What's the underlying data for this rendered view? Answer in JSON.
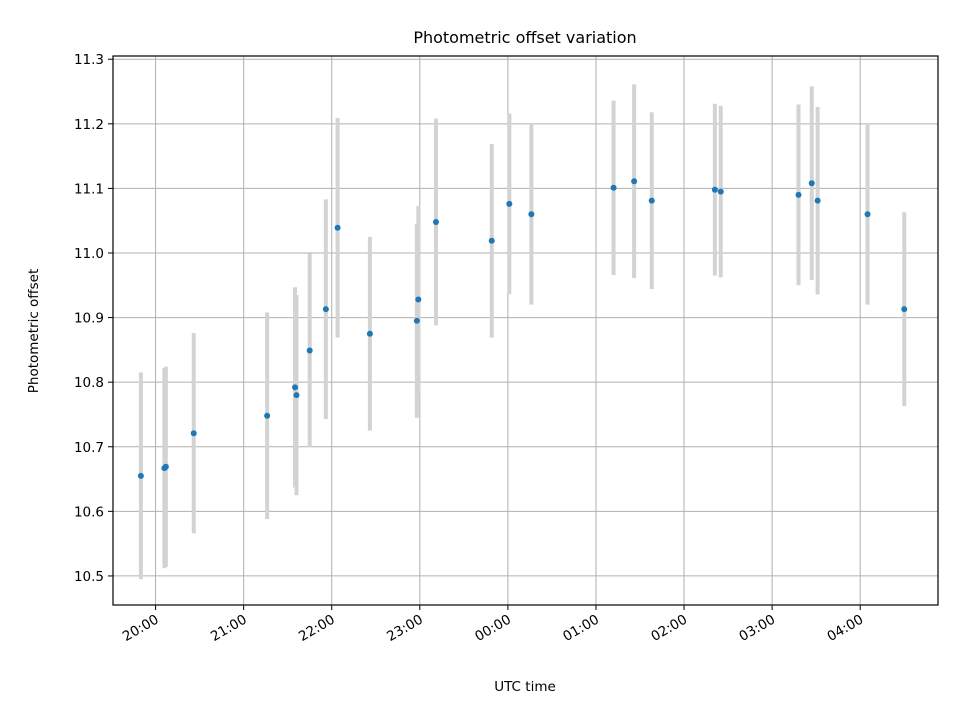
{
  "chart_data": {
    "type": "scatter",
    "title": "Photometric offset variation",
    "xlabel": "UTC time",
    "ylabel": "Photometric offset",
    "x_tick_labels": [
      "20:00",
      "21:00",
      "22:00",
      "23:00",
      "00:00",
      "01:00",
      "02:00",
      "03:00",
      "04:00"
    ],
    "y_ticks": [
      10.5,
      10.6,
      10.7,
      10.8,
      10.9,
      11.0,
      11.1,
      11.2,
      11.3
    ],
    "y_tick_labels": [
      "10.5",
      "10.6",
      "10.7",
      "10.8",
      "10.9",
      "11.0",
      "11.1",
      "11.2",
      "11.3"
    ],
    "x_range": [
      "19:31",
      "04:53"
    ],
    "ylim": [
      10.455,
      11.305
    ],
    "grid": true,
    "point_color": "#1f77b4",
    "errorbar_color": "#d3d3d3",
    "points": [
      {
        "time": "19:50",
        "y": 10.655,
        "err": 0.16
      },
      {
        "time": "20:06",
        "y": 10.667,
        "err": 0.155
      },
      {
        "time": "20:07",
        "y": 10.669,
        "err": 0.155
      },
      {
        "time": "20:26",
        "y": 10.721,
        "err": 0.155
      },
      {
        "time": "21:16",
        "y": 10.748,
        "err": 0.16
      },
      {
        "time": "21:35",
        "y": 10.792,
        "err": 0.155
      },
      {
        "time": "21:36",
        "y": 10.78,
        "err": 0.155
      },
      {
        "time": "21:45",
        "y": 10.849,
        "err": 0.15
      },
      {
        "time": "21:56",
        "y": 10.913,
        "err": 0.17
      },
      {
        "time": "22:04",
        "y": 11.039,
        "err": 0.17
      },
      {
        "time": "22:26",
        "y": 10.875,
        "err": 0.15
      },
      {
        "time": "22:58",
        "y": 10.895,
        "err": 0.15
      },
      {
        "time": "22:59",
        "y": 10.928,
        "err": 0.145
      },
      {
        "time": "23:11",
        "y": 11.048,
        "err": 0.16
      },
      {
        "time": "23:49",
        "y": 11.019,
        "err": 0.15
      },
      {
        "time": "00:01",
        "y": 11.076,
        "err": 0.14
      },
      {
        "time": "00:16",
        "y": 11.06,
        "err": 0.14
      },
      {
        "time": "01:12",
        "y": 11.101,
        "err": 0.135
      },
      {
        "time": "01:26",
        "y": 11.111,
        "err": 0.15
      },
      {
        "time": "01:38",
        "y": 11.081,
        "err": 0.137
      },
      {
        "time": "02:21",
        "y": 11.098,
        "err": 0.133
      },
      {
        "time": "02:25",
        "y": 11.095,
        "err": 0.133
      },
      {
        "time": "03:18",
        "y": 11.09,
        "err": 0.14
      },
      {
        "time": "03:27",
        "y": 11.108,
        "err": 0.15
      },
      {
        "time": "03:31",
        "y": 11.081,
        "err": 0.145
      },
      {
        "time": "04:05",
        "y": 11.06,
        "err": 0.14
      },
      {
        "time": "04:30",
        "y": 10.913,
        "err": 0.15
      }
    ]
  }
}
